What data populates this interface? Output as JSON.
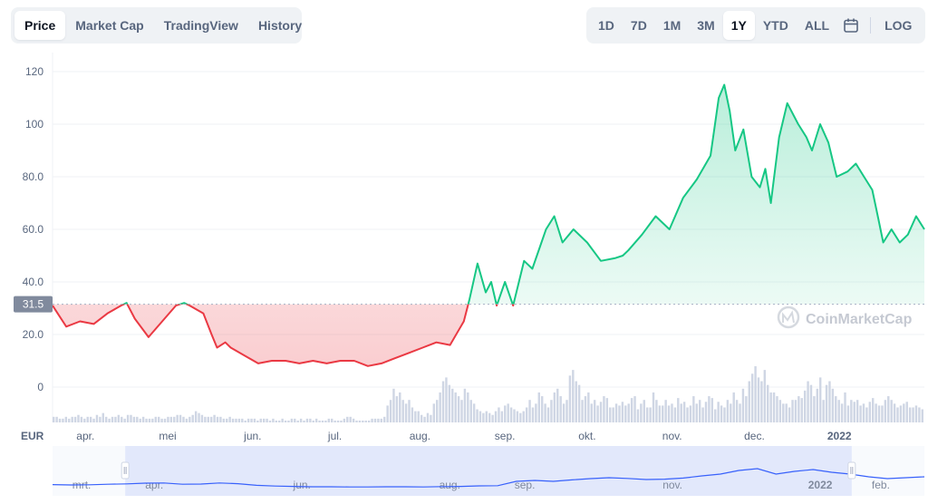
{
  "tabs": {
    "chart_types": [
      "Price",
      "Market Cap",
      "TradingView",
      "History"
    ],
    "active_chart_type": "Price",
    "ranges": [
      "1D",
      "7D",
      "1M",
      "3M",
      "1Y",
      "YTD",
      "ALL"
    ],
    "active_range": "1Y",
    "calendar_icon": "calendar-icon",
    "log_label": "LOG"
  },
  "watermark": "CoinMarketCap",
  "colors": {
    "up": "#16c784",
    "down": "#ea3943",
    "baseline": "#a6b0c3",
    "volume": "#cfd6e4",
    "navigator": "#3861fb"
  },
  "chart_data": {
    "type": "line",
    "currency": "EUR",
    "baseline_value": 31.5,
    "baseline_label": "31.5",
    "y_ticks": [
      0,
      20,
      40,
      60,
      80,
      100,
      120
    ],
    "y_tick_labels": [
      "0",
      "20.0",
      "40.0",
      "60.0",
      "80.0",
      "100",
      "120"
    ],
    "ylim": [
      0,
      120
    ],
    "x_tick_labels": [
      "apr.",
      "mei",
      "jun.",
      "jul.",
      "aug.",
      "sep.",
      "okt.",
      "nov.",
      "dec.",
      "2022"
    ],
    "x_tick_days": [
      12,
      42,
      73,
      103,
      134,
      165,
      195,
      226,
      256,
      287
    ],
    "x_tick_bold": [
      false,
      false,
      false,
      false,
      false,
      false,
      false,
      false,
      false,
      true
    ],
    "x_range_days": [
      0,
      318
    ],
    "series": [
      {
        "days": [
          0,
          5,
          10,
          15,
          20,
          25,
          27,
          30,
          35,
          40,
          45,
          48,
          50,
          55,
          58,
          60,
          63,
          65,
          70,
          75,
          80,
          85,
          90,
          95,
          100,
          105,
          110,
          115,
          120,
          125,
          130,
          135,
          140,
          145,
          150,
          152,
          155,
          158,
          160,
          162,
          165,
          168,
          172,
          175,
          180,
          183,
          186,
          190,
          195,
          200,
          205,
          208,
          210,
          215,
          220,
          225,
          230,
          235,
          240,
          243,
          245,
          247,
          249,
          252,
          255,
          258,
          260,
          262,
          265,
          268,
          272,
          275,
          277,
          280,
          283,
          286,
          290,
          293,
          296,
          299,
          301,
          303,
          306,
          309,
          312,
          315,
          318
        ],
        "values": [
          31,
          23,
          25,
          24,
          28,
          31,
          32,
          26,
          19,
          25,
          31,
          32,
          31,
          28,
          20,
          15,
          17,
          15,
          12,
          9,
          10,
          10,
          9,
          10,
          9,
          10,
          10,
          8,
          9,
          11,
          13,
          15,
          17,
          16,
          25,
          33,
          47,
          36,
          40,
          31,
          40,
          31,
          48,
          45,
          60,
          65,
          55,
          60,
          55,
          48,
          49,
          50,
          52,
          58,
          65,
          60,
          72,
          79,
          88,
          110,
          115,
          105,
          90,
          98,
          80,
          76,
          83,
          70,
          95,
          108,
          100,
          95,
          90,
          100,
          93,
          80,
          82,
          85,
          80,
          75,
          65,
          55,
          60,
          55,
          58,
          65,
          60
        ]
      }
    ],
    "volume": [
      3,
      3,
      2,
      2,
      3,
      2,
      3,
      3,
      4,
      3,
      2,
      3,
      3,
      2,
      4,
      3,
      5,
      3,
      2,
      3,
      3,
      4,
      3,
      2,
      4,
      4,
      3,
      3,
      2,
      3,
      2,
      2,
      2,
      3,
      3,
      2,
      2,
      3,
      3,
      3,
      4,
      4,
      3,
      2,
      3,
      4,
      6,
      5,
      4,
      3,
      3,
      3,
      4,
      3,
      3,
      2,
      2,
      3,
      2,
      2,
      2,
      2,
      1,
      2,
      2,
      2,
      1,
      2,
      2,
      2,
      1,
      2,
      1,
      1,
      2,
      1,
      1,
      2,
      2,
      1,
      2,
      1,
      2,
      2,
      1,
      2,
      1,
      1,
      1,
      2,
      2,
      1,
      1,
      1,
      2,
      3,
      3,
      2,
      1,
      1,
      1,
      1,
      1,
      2,
      2,
      2,
      2,
      3,
      9,
      12,
      18,
      14,
      16,
      12,
      10,
      12,
      8,
      6,
      6,
      4,
      3,
      5,
      4,
      10,
      12,
      16,
      22,
      24,
      20,
      18,
      16,
      14,
      12,
      18,
      16,
      12,
      10,
      7,
      6,
      5,
      6,
      5,
      4,
      6,
      8,
      6,
      9,
      10,
      8,
      7,
      6,
      5,
      6,
      8,
      12,
      8,
      10,
      16,
      14,
      10,
      8,
      12,
      16,
      18,
      14,
      10,
      12,
      25,
      28,
      22,
      20,
      12,
      14,
      16,
      10,
      12,
      9,
      11,
      14,
      13,
      8,
      8,
      10,
      9,
      11,
      9,
      10,
      13,
      14,
      7,
      10,
      12,
      8,
      8,
      16,
      12,
      9,
      9,
      12,
      9,
      10,
      8,
      13,
      10,
      11,
      8,
      9,
      14,
      10,
      12,
      8,
      11,
      14,
      13,
      7,
      11,
      9,
      8,
      12,
      10,
      16,
      12,
      10,
      18,
      14,
      22,
      26,
      30,
      24,
      22,
      28,
      20,
      16,
      16,
      14,
      12,
      10,
      10,
      8,
      12,
      12,
      14,
      13,
      17,
      22,
      20,
      14,
      18,
      24,
      12,
      20,
      22,
      18,
      14,
      12,
      10,
      16,
      9,
      12,
      11,
      12,
      9,
      10,
      8,
      11,
      13,
      10,
      9,
      9,
      12,
      14,
      12,
      10,
      8,
      9,
      10,
      11,
      8,
      8,
      9,
      8,
      7
    ]
  },
  "navigator": {
    "labels": [
      "mrt.",
      "apr.",
      "jun.",
      "aug.",
      "sep.",
      "nov.",
      "2022",
      "feb."
    ],
    "label_days": [
      -18,
      12,
      73,
      134,
      165,
      226,
      287,
      312
    ],
    "label_bold": [
      false,
      false,
      false,
      false,
      false,
      false,
      true,
      false
    ],
    "range_days": [
      -30,
      330
    ],
    "window_days": [
      0,
      300
    ],
    "values": [
      22,
      20,
      21,
      24,
      26,
      30,
      31,
      24,
      25,
      31,
      27,
      18,
      14,
      12,
      10,
      10,
      9,
      9,
      10,
      10,
      9,
      11,
      12,
      15,
      16,
      40,
      45,
      40,
      48,
      55,
      60,
      56,
      50,
      52,
      58,
      70,
      80,
      100,
      110,
      80,
      95,
      105,
      90,
      80,
      65,
      55,
      60,
      65
    ]
  }
}
